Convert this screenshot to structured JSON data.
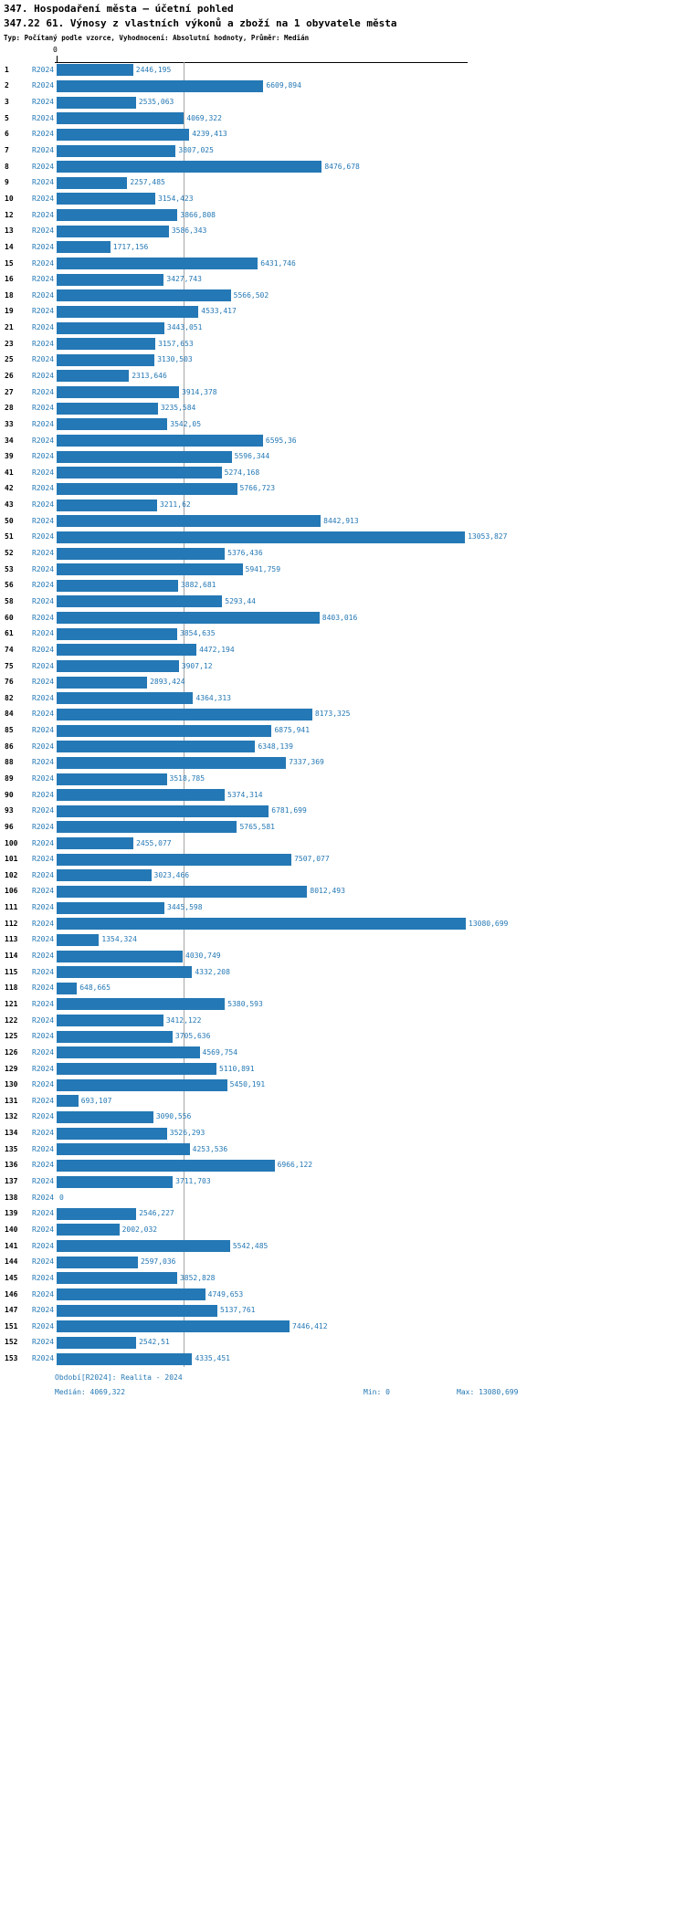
{
  "header": {
    "title1": "347. Hospodaření města – účetní pohled",
    "title2": "347.22 61. Výnosy z vlastních výkonů a zboží na 1 obyvatele města",
    "subtitle": "Typ: Počítaný podle vzorce, Vyhodnocení: Absolutní hodnoty, Průměr: Medián"
  },
  "colors": {
    "bar": "#2478b5",
    "median_line": "#a6a6a6",
    "axis": "#000000"
  },
  "chart_data": {
    "type": "bar",
    "orientation": "horizontal",
    "title": "347. Hospodaření města – účetní pohled",
    "subtitle": "347.22 61. Výnosy z vlastních výkonů a zboží na 1 obyvatele města",
    "series_label": "R2024",
    "axis_zero_label": "0",
    "xlim": [
      0,
      13080.699
    ],
    "median_value": 4069.322,
    "min_value": 0,
    "max_value": 13080.699,
    "columns": [
      "row_id",
      "value"
    ],
    "rows": [
      [
        "1",
        "2446,195"
      ],
      [
        "2",
        "6609,894"
      ],
      [
        "3",
        "2535,063"
      ],
      [
        "5",
        "4069,322"
      ],
      [
        "6",
        "4239,413"
      ],
      [
        "7",
        "3807,025"
      ],
      [
        "8",
        "8476,678"
      ],
      [
        "9",
        "2257,485"
      ],
      [
        "10",
        "3154,423"
      ],
      [
        "12",
        "3866,808"
      ],
      [
        "13",
        "3586,343"
      ],
      [
        "14",
        "1717,156"
      ],
      [
        "15",
        "6431,746"
      ],
      [
        "16",
        "3427,743"
      ],
      [
        "18",
        "5566,502"
      ],
      [
        "19",
        "4533,417"
      ],
      [
        "21",
        "3443,051"
      ],
      [
        "23",
        "3157,653"
      ],
      [
        "25",
        "3130,503"
      ],
      [
        "26",
        "2313,646"
      ],
      [
        "27",
        "3914,378"
      ],
      [
        "28",
        "3235,584"
      ],
      [
        "33",
        "3542,05"
      ],
      [
        "34",
        "6595,36"
      ],
      [
        "39",
        "5596,344"
      ],
      [
        "41",
        "5274,168"
      ],
      [
        "42",
        "5766,723"
      ],
      [
        "43",
        "3211,62"
      ],
      [
        "50",
        "8442,913"
      ],
      [
        "51",
        "13053,827"
      ],
      [
        "52",
        "5376,436"
      ],
      [
        "53",
        "5941,759"
      ],
      [
        "56",
        "3882,681"
      ],
      [
        "58",
        "5293,44"
      ],
      [
        "60",
        "8403,016"
      ],
      [
        "61",
        "3854,635"
      ],
      [
        "74",
        "4472,194"
      ],
      [
        "75",
        "3907,12"
      ],
      [
        "76",
        "2893,424"
      ],
      [
        "82",
        "4364,313"
      ],
      [
        "84",
        "8173,325"
      ],
      [
        "85",
        "6875,941"
      ],
      [
        "86",
        "6348,139"
      ],
      [
        "88",
        "7337,369"
      ],
      [
        "89",
        "3518,785"
      ],
      [
        "90",
        "5374,314"
      ],
      [
        "93",
        "6781,699"
      ],
      [
        "96",
        "5765,581"
      ],
      [
        "100",
        "2455,077"
      ],
      [
        "101",
        "7507,077"
      ],
      [
        "102",
        "3023,466"
      ],
      [
        "106",
        "8012,493"
      ],
      [
        "111",
        "3445,598"
      ],
      [
        "112",
        "13080,699"
      ],
      [
        "113",
        "1354,324"
      ],
      [
        "114",
        "4030,749"
      ],
      [
        "115",
        "4332,208"
      ],
      [
        "118",
        "648,665"
      ],
      [
        "121",
        "5380,593"
      ],
      [
        "122",
        "3412,122"
      ],
      [
        "125",
        "3705,636"
      ],
      [
        "126",
        "4569,754"
      ],
      [
        "129",
        "5110,891"
      ],
      [
        "130",
        "5450,191"
      ],
      [
        "131",
        "693,107"
      ],
      [
        "132",
        "3090,556"
      ],
      [
        "134",
        "3526,293"
      ],
      [
        "135",
        "4253,536"
      ],
      [
        "136",
        "6966,122"
      ],
      [
        "137",
        "3711,703"
      ],
      [
        "138",
        "0"
      ],
      [
        "139",
        "2546,227"
      ],
      [
        "140",
        "2002,032"
      ],
      [
        "141",
        "5542,485"
      ],
      [
        "144",
        "2597,036"
      ],
      [
        "145",
        "3852,828"
      ],
      [
        "146",
        "4749,653"
      ],
      [
        "147",
        "5137,761"
      ],
      [
        "151",
        "7446,412"
      ],
      [
        "152",
        "2542,51"
      ],
      [
        "153",
        "4335,451"
      ]
    ]
  },
  "footer": {
    "period": "Období[R2024]: Realita - 2024",
    "median": "Medián: 4069,322",
    "min": "Min: 0",
    "max": "Max: 13080,699"
  }
}
